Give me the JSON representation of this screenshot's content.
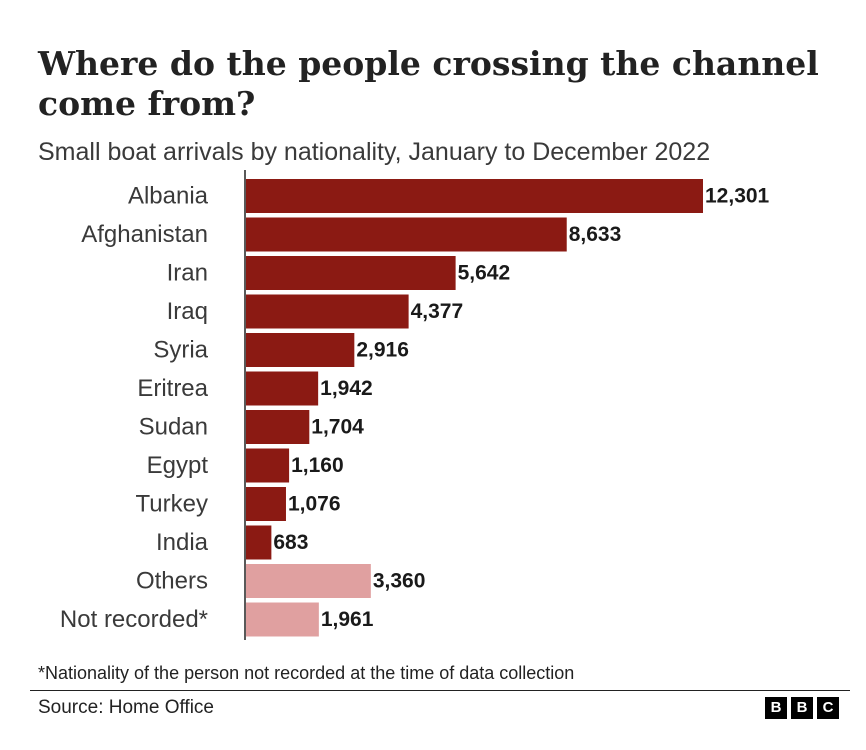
{
  "chart_data": {
    "type": "bar",
    "orientation": "horizontal",
    "title": "Where do the people crossing the channel come from?",
    "subtitle": "Small boat arrivals by nationality, January to December 2022",
    "categories": [
      "Albania",
      "Afghanistan",
      "Iran",
      "Iraq",
      "Syria",
      "Eritrea",
      "Sudan",
      "Egypt",
      "Turkey",
      "India",
      "Others",
      "Not recorded*"
    ],
    "values": [
      12301,
      8633,
      5642,
      4377,
      2916,
      1942,
      1704,
      1160,
      1076,
      683,
      3360,
      1961
    ],
    "value_labels": [
      "12,301",
      "8,633",
      "5,642",
      "4,377",
      "2,916",
      "1,942",
      "1,704",
      "1,160",
      "1,076",
      "683",
      "3,360",
      "1,961"
    ],
    "bar_colors": [
      "#8b1a13",
      "#8b1a13",
      "#8b1a13",
      "#8b1a13",
      "#8b1a13",
      "#8b1a13",
      "#8b1a13",
      "#8b1a13",
      "#8b1a13",
      "#8b1a13",
      "#e0a0a0",
      "#e0a0a0"
    ],
    "xlim": [
      0,
      12301
    ],
    "grid": false,
    "footnote": "*Nationality of the person not recorded at the time of data collection",
    "source": "Source: Home Office"
  },
  "logo": {
    "letters": [
      "B",
      "B",
      "C"
    ]
  }
}
